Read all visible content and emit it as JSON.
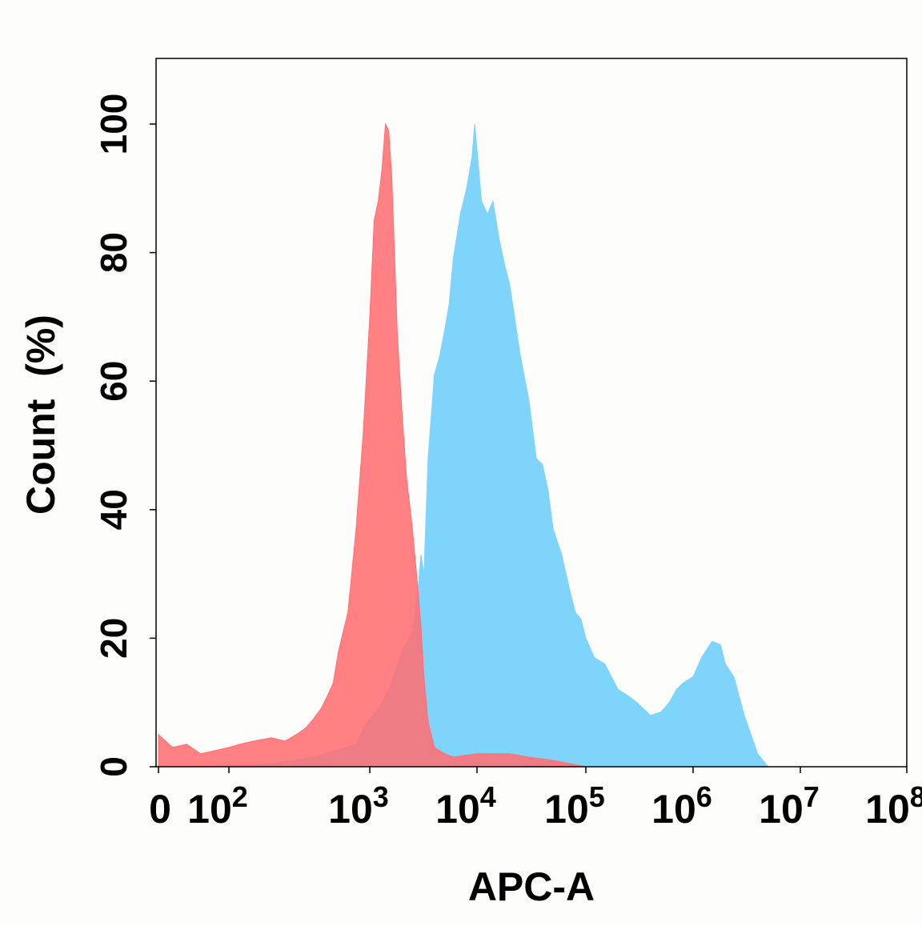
{
  "chart_data": {
    "type": "area",
    "xlabel": "APC-A",
    "ylabel": "Count  (%)",
    "xscale": "log (biexponential near 0)",
    "xlim": [
      0,
      100000000
    ],
    "ylim": [
      0,
      100
    ],
    "grid": false,
    "legend": "none",
    "x_ticks": [
      {
        "value": 0,
        "base": "0",
        "exp": ""
      },
      {
        "value": 100,
        "base": "10",
        "exp": "2"
      },
      {
        "value": 1000,
        "base": "10",
        "exp": "3"
      },
      {
        "value": 10000,
        "base": "10",
        "exp": "4"
      },
      {
        "value": 100000,
        "base": "10",
        "exp": "5"
      },
      {
        "value": 1000000,
        "base": "10",
        "exp": "6"
      },
      {
        "value": 10000000,
        "base": "10",
        "exp": "7"
      },
      {
        "value": 100000000,
        "base": "10",
        "exp": "8"
      }
    ],
    "y_ticks": [
      "0",
      "20",
      "40",
      "60",
      "80",
      "100"
    ],
    "series": [
      {
        "color": "#7fd4fb",
        "points": [
          [
            50,
            0
          ],
          [
            200,
            0.5
          ],
          [
            400,
            1.5
          ],
          [
            800,
            3.5
          ],
          [
            900,
            6
          ],
          [
            1000,
            7.5
          ],
          [
            1200,
            9
          ],
          [
            1500,
            12
          ],
          [
            2000,
            18
          ],
          [
            2500,
            21
          ],
          [
            2800,
            27
          ],
          [
            3000,
            33
          ],
          [
            3200,
            30
          ],
          [
            3500,
            48
          ],
          [
            4000,
            61
          ],
          [
            4500,
            64
          ],
          [
            5000,
            68
          ],
          [
            5500,
            72
          ],
          [
            6000,
            79
          ],
          [
            7000,
            86
          ],
          [
            8000,
            90
          ],
          [
            9000,
            95
          ],
          [
            9500,
            100
          ],
          [
            10000,
            96
          ],
          [
            11000,
            88
          ],
          [
            12500,
            86
          ],
          [
            14000,
            88
          ],
          [
            16000,
            82
          ],
          [
            18000,
            78
          ],
          [
            20000,
            75
          ],
          [
            25000,
            64
          ],
          [
            30000,
            57
          ],
          [
            35000,
            48
          ],
          [
            40000,
            47
          ],
          [
            45000,
            43
          ],
          [
            50000,
            37
          ],
          [
            60000,
            33
          ],
          [
            70000,
            28
          ],
          [
            80000,
            24
          ],
          [
            90000,
            23
          ],
          [
            100000,
            20
          ],
          [
            120000,
            17
          ],
          [
            150000,
            16
          ],
          [
            200000,
            12
          ],
          [
            250000,
            11
          ],
          [
            300000,
            10
          ],
          [
            400000,
            8
          ],
          [
            500000,
            8.5
          ],
          [
            600000,
            10
          ],
          [
            700000,
            12
          ],
          [
            800000,
            13
          ],
          [
            1000000,
            14
          ],
          [
            1200000,
            17
          ],
          [
            1500000,
            19.5
          ],
          [
            1800000,
            19
          ],
          [
            2000000,
            16
          ],
          [
            2400000,
            14
          ],
          [
            3000000,
            8
          ],
          [
            4000000,
            2
          ],
          [
            5000000,
            0
          ]
        ]
      },
      {
        "color": "#ff6f73",
        "points": [
          [
            0,
            5
          ],
          [
            20,
            3
          ],
          [
            40,
            3.5
          ],
          [
            60,
            2
          ],
          [
            100,
            3
          ],
          [
            120,
            3.5
          ],
          [
            150,
            4
          ],
          [
            200,
            4.5
          ],
          [
            250,
            4
          ],
          [
            300,
            5
          ],
          [
            350,
            6
          ],
          [
            400,
            7.5
          ],
          [
            450,
            9
          ],
          [
            500,
            11
          ],
          [
            550,
            13
          ],
          [
            600,
            18
          ],
          [
            700,
            24
          ],
          [
            800,
            37
          ],
          [
            900,
            52
          ],
          [
            1000,
            70
          ],
          [
            1100,
            85
          ],
          [
            1200,
            88
          ],
          [
            1300,
            93
          ],
          [
            1400,
            100
          ],
          [
            1500,
            99
          ],
          [
            1600,
            92
          ],
          [
            1700,
            80
          ],
          [
            1800,
            68
          ],
          [
            2000,
            55
          ],
          [
            2200,
            45
          ],
          [
            2500,
            37
          ],
          [
            2800,
            28
          ],
          [
            3000,
            22
          ],
          [
            3200,
            14
          ],
          [
            3500,
            7
          ],
          [
            4000,
            3
          ],
          [
            5000,
            2
          ],
          [
            6000,
            1.5
          ],
          [
            8000,
            1.8
          ],
          [
            10000,
            2
          ],
          [
            15000,
            2
          ],
          [
            20000,
            2
          ],
          [
            30000,
            1.5
          ],
          [
            50000,
            1
          ],
          [
            70000,
            0.5
          ],
          [
            100000,
            0
          ]
        ]
      }
    ]
  }
}
